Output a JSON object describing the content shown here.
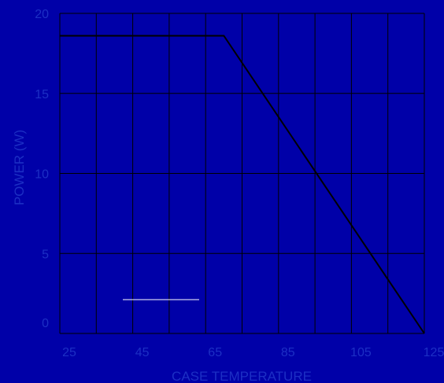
{
  "colors": {
    "background": "#0000a8",
    "grid": "#000000",
    "line": "#000000",
    "text": "#1c2fc4",
    "legend_line": "#ffffff"
  },
  "chart_data": {
    "type": "line",
    "title": "",
    "xlabel": "CASE TEMPERATURE",
    "ylabel": "POWER (W)",
    "xlim": [
      25,
      125
    ],
    "ylim": [
      0,
      20
    ],
    "x_ticks": [
      25,
      45,
      65,
      85,
      105,
      125
    ],
    "y_ticks": [
      0,
      5,
      10,
      15,
      20
    ],
    "x_tick_labels": [
      "25",
      "45",
      "65",
      "85",
      "105",
      "125"
    ],
    "y_tick_labels": [
      "0",
      "5",
      "10",
      "15",
      "20"
    ],
    "grid": true,
    "legend": "bottom-left",
    "series": [
      {
        "x": [
          25,
          70,
          125
        ],
        "y": [
          18.6,
          18.6,
          0
        ]
      }
    ]
  }
}
